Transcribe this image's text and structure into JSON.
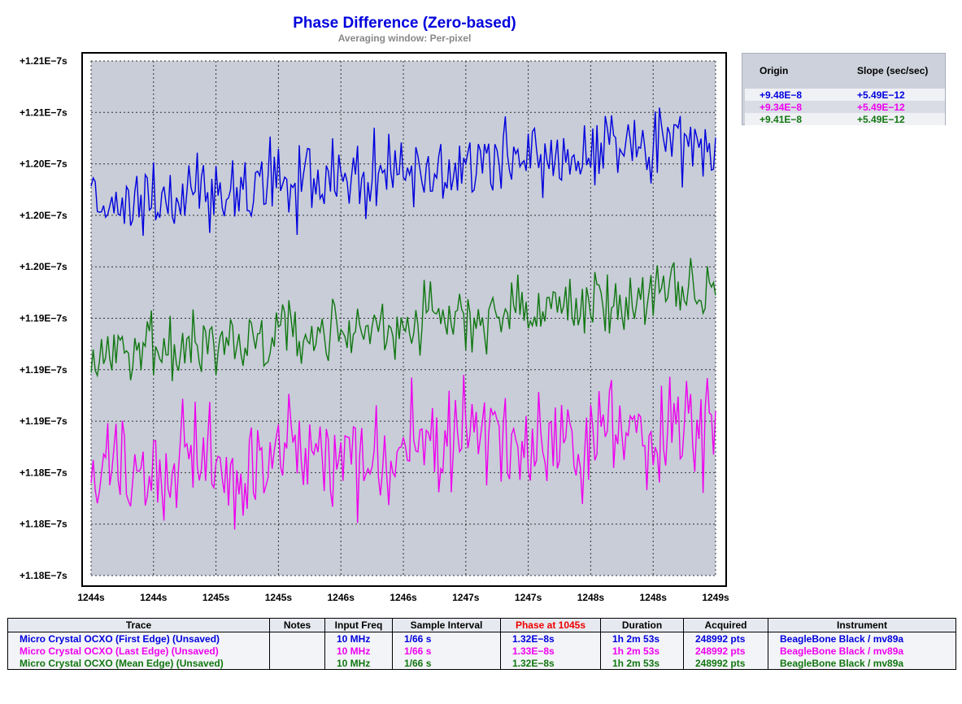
{
  "chart_data": {
    "type": "line",
    "title": "Phase Difference (Zero-based)",
    "subtitle": "Averaging window: Per-pixel",
    "xlabel": "",
    "ylabel": "",
    "grid": true,
    "x_tick_labels": [
      "1244s",
      "1244s",
      "1245s",
      "1245s",
      "1246s",
      "1246s",
      "1247s",
      "1247s",
      "1248s",
      "1248s",
      "1249s"
    ],
    "y_tick_labels": [
      "+1.21E−7s",
      "+1.21E−7s",
      "+1.20E−7s",
      "+1.20E−7s",
      "+1.20E−7s",
      "+1.19E−7s",
      "+1.19E−7s",
      "+1.19E−7s",
      "+1.18E−7s",
      "+1.18E−7s",
      "+1.18E−7s"
    ],
    "xlim": [
      1244.0,
      1249.0
    ],
    "ylim": [
      1.178e-07,
      1.212e-07
    ],
    "series": [
      {
        "name": "Micro Crystal OCXO (First Edge) (Unsaved)",
        "color": "#0000dd",
        "start": 1.2024e-07,
        "end": 1.2068e-07,
        "noise": 1.2e-10
      },
      {
        "name": "Micro Crystal OCXO (Last Edge) (Unsaved)",
        "color": "#ee00ee",
        "start": 1.1848e-07,
        "end": 1.1878e-07,
        "noise": 1.9e-10
      },
      {
        "name": "Micro Crystal OCXO (Mean Edge) (Unsaved)",
        "color": "#117711",
        "start": 1.1924e-07,
        "end": 1.1968e-07,
        "noise": 1.1e-10
      }
    ]
  },
  "slope_panel": {
    "origin_header": "Origin",
    "slope_header": "Slope (sec/sec)",
    "rows": [
      {
        "origin": "+9.48E−8",
        "slope": "+5.49E−12",
        "color": "#0000dd"
      },
      {
        "origin": "+9.34E−8",
        "slope": "+5.49E−12",
        "color": "#ee00ee"
      },
      {
        "origin": "+9.41E−8",
        "slope": "+5.49E−12",
        "color": "#117711"
      }
    ]
  },
  "trace_table": {
    "headers": [
      "Trace",
      "Notes",
      "Input Freq",
      "Sample Interval",
      "Phase at 1045s",
      "Duration",
      "Acquired",
      "Instrument"
    ],
    "highlight_header_color": "#ee0000",
    "rows": [
      {
        "color": "#0000dd",
        "trace": "Micro Crystal OCXO (First Edge) (Unsaved)",
        "notes": "",
        "freq": "10 MHz",
        "interval": "1/66 s",
        "phase": "1.32E−8s",
        "duration": "1h 2m 53s",
        "acquired": "248992 pts",
        "instrument": "BeagleBone Black / mv89a"
      },
      {
        "color": "#ee00ee",
        "trace": "Micro Crystal OCXO (Last Edge) (Unsaved)",
        "notes": "",
        "freq": "10 MHz",
        "interval": "1/66 s",
        "phase": "1.33E−8s",
        "duration": "1h 2m 53s",
        "acquired": "248992 pts",
        "instrument": "BeagleBone Black / mv89a"
      },
      {
        "color": "#117711",
        "trace": "Micro Crystal OCXO (Mean Edge) (Unsaved)",
        "notes": "",
        "freq": "10 MHz",
        "interval": "1/66 s",
        "phase": "1.32E−8s",
        "duration": "1h 2m 53s",
        "acquired": "248992 pts",
        "instrument": "BeagleBone Black / mv89a"
      }
    ]
  }
}
